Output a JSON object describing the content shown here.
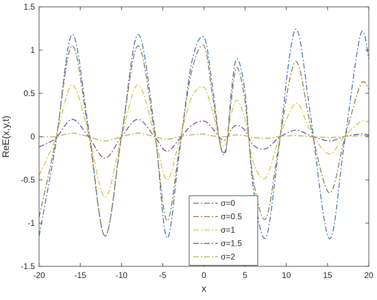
{
  "chart_data": {
    "type": "line",
    "xlabel": "x",
    "ylabel": "ReE(x,y,t)",
    "xlim": [
      -20,
      20
    ],
    "ylim": [
      -1.5,
      1.5
    ],
    "xticks": [
      -20,
      -15,
      -10,
      -5,
      0,
      5,
      10,
      15,
      20
    ],
    "yticks": [
      -1.5,
      -1,
      -0.5,
      0,
      0.5,
      1,
      1.5
    ],
    "grid": false,
    "legend_position": "bottom-center",
    "series": [
      {
        "name": "σ=0",
        "color": "#3f6fc4",
        "dash": "dash-dot",
        "x": [
          -20,
          -18,
          -16,
          -14,
          -12,
          -10,
          -8,
          -6,
          -4.5,
          -3,
          -1.5,
          0,
          1,
          2,
          2.7,
          3.3,
          4,
          5,
          6,
          7.5,
          9,
          10.5,
          11.5,
          13,
          15.2,
          17,
          19,
          20
        ],
        "y": [
          -1.15,
          -0.1,
          1.18,
          0.1,
          -1.15,
          0.0,
          1.18,
          0.1,
          -1.17,
          -0.2,
          0.85,
          1.15,
          0.6,
          -0.1,
          -0.15,
          0.5,
          0.9,
          0.5,
          -0.6,
          -1.17,
          -0.2,
          1.0,
          1.18,
          0.2,
          -1.18,
          -0.1,
          1.18,
          0.9
        ]
      },
      {
        "name": "σ=0.5",
        "color": "#8b7a36",
        "dash": "dash-dot",
        "x": [
          -20,
          -18,
          -16,
          -14,
          -12,
          -10,
          -8,
          -6,
          -4.5,
          -3,
          -1.5,
          0,
          1,
          2,
          2.7,
          3.3,
          4,
          5,
          6,
          7.5,
          9,
          10.5,
          11.5,
          13,
          15.2,
          17,
          19,
          20
        ],
        "y": [
          -0.93,
          -0.05,
          1.05,
          0.05,
          -1.15,
          0.0,
          1.05,
          0.05,
          -0.97,
          -0.15,
          0.75,
          1.05,
          0.5,
          -0.1,
          -0.13,
          0.4,
          0.8,
          0.4,
          -0.5,
          -0.95,
          -0.15,
          0.7,
          0.82,
          0.1,
          -0.65,
          -0.05,
          0.6,
          0.55
        ]
      },
      {
        "name": "σ=1",
        "color": "#d0c53c",
        "dash": "dash-dot",
        "x": [
          -20,
          -18,
          -16,
          -14,
          -12,
          -10,
          -8,
          -6,
          -4.5,
          -3,
          -1.5,
          0,
          1,
          2,
          2.7,
          3.3,
          4,
          5,
          6,
          7.5,
          9,
          10.5,
          11.5,
          13,
          15.2,
          17,
          19,
          20
        ],
        "y": [
          -0.45,
          -0.02,
          0.6,
          0.03,
          -0.7,
          0.0,
          0.6,
          0.02,
          -0.5,
          -0.05,
          0.45,
          0.57,
          0.3,
          -0.05,
          -0.08,
          0.25,
          0.42,
          0.2,
          -0.3,
          -0.48,
          -0.05,
          0.3,
          0.37,
          0.05,
          -0.2,
          0.0,
          0.17,
          0.17
        ]
      },
      {
        "name": "σ=1.5",
        "color": "#7a3f9e",
        "dash": "dash-dot",
        "x": [
          -20,
          -18,
          -16,
          -14,
          -12,
          -10,
          -8,
          -6,
          -4.5,
          -3,
          -1.5,
          0,
          1,
          2,
          2.7,
          3.3,
          4,
          5,
          6,
          7.5,
          9,
          10.5,
          11.5,
          13,
          15.2,
          17,
          19,
          20
        ],
        "y": [
          -0.12,
          -0.02,
          0.2,
          0.0,
          -0.25,
          0.0,
          0.2,
          0.0,
          -0.17,
          -0.03,
          0.13,
          0.18,
          0.1,
          -0.02,
          -0.03,
          0.08,
          0.13,
          0.07,
          -0.1,
          -0.14,
          -0.02,
          0.06,
          0.07,
          0.01,
          -0.05,
          0.0,
          0.03,
          0.02
        ]
      },
      {
        "name": "σ=2",
        "color": "#9fb54a",
        "dash": "dash-dot",
        "x": [
          -20,
          -18,
          -16,
          -14,
          -12,
          -10,
          -8,
          -6,
          -4.5,
          -3,
          -1.5,
          0,
          1,
          2,
          2.7,
          3.3,
          4,
          5,
          6,
          7.5,
          9,
          10.5,
          11.5,
          13,
          15.2,
          17,
          19,
          20
        ],
        "y": [
          0.0,
          0.0,
          0.04,
          0.0,
          -0.05,
          0.0,
          0.04,
          0.0,
          -0.03,
          0.0,
          0.02,
          0.03,
          0.01,
          0.0,
          0.0,
          0.01,
          0.02,
          0.01,
          -0.01,
          -0.02,
          0.0,
          0.01,
          0.01,
          0.0,
          -0.01,
          0.0,
          0.01,
          0.01
        ]
      }
    ]
  }
}
